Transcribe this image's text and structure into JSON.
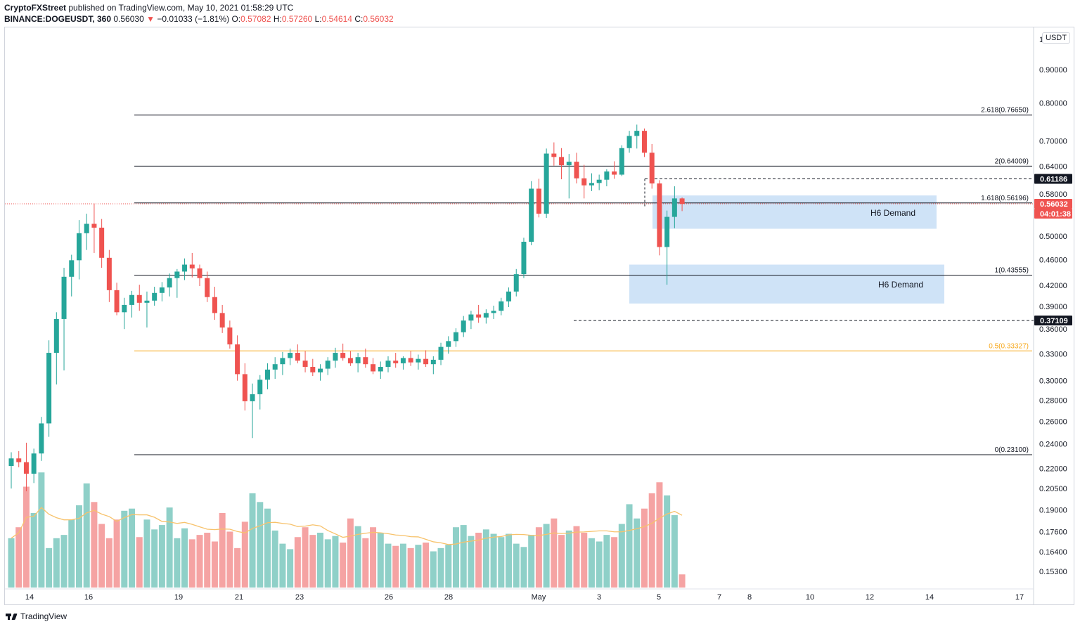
{
  "header": {
    "author": "CryptoFXStreet",
    "published": "published on TradingView.com, May 10, 2021 01:58:29 UTC",
    "symbol": "BINANCE:DOGEUSDT, 360",
    "last": "0.56030",
    "change": "−0.01033 (−1.81%)",
    "o_label": "O:",
    "o": "0.57082",
    "h_label": "H:",
    "h": "0.57260",
    "l_label": "L:",
    "l": "0.54614",
    "c_label": "C:",
    "c": "0.56032"
  },
  "footer": {
    "brand": "TradingView"
  },
  "currency_badge": "USDT",
  "colors": {
    "up": "#26a69a",
    "down": "#ef5350",
    "vol_up": "#8fd0c8",
    "vol_down": "#f5a3a3",
    "zone": "#cfe3f7",
    "fib05": "#f7a81b",
    "ma": "#f7c26b"
  },
  "chart_data": {
    "type": "candlestick",
    "price_axis": {
      "ticks": [
        "1",
        "0.90000",
        "0.80000",
        "0.70000",
        "0.64000",
        "0.58000",
        "0.50000",
        "0.46000",
        "0.42000",
        "0.39000",
        "0.36000",
        "0.33000",
        "0.30000",
        "0.28000",
        "0.26000",
        "0.24000",
        "0.22000",
        "0.20500",
        "0.19000",
        "0.17600",
        "0.16400",
        "0.15300"
      ],
      "scale": "log"
    },
    "time_axis": {
      "ticks": [
        "14",
        "16",
        "19",
        "21",
        "23",
        "26",
        "28",
        "May",
        "3",
        "5",
        "7",
        "8",
        "10",
        "12",
        "14",
        "17"
      ]
    },
    "fib_levels": [
      {
        "label": "2.618(0.76650)",
        "value": 0.7665
      },
      {
        "label": "2(0.64009)",
        "value": 0.64009
      },
      {
        "label": "1.618(0.56196)",
        "value": 0.56196
      },
      {
        "label": "1(0.43555)",
        "value": 0.43555
      },
      {
        "label": "0.5(0.33327)",
        "value": 0.33327
      },
      {
        "label": "0(0.23100)",
        "value": 0.231
      }
    ],
    "price_tags": [
      {
        "label": "0.61186",
        "value": 0.61186,
        "style": "dark"
      },
      {
        "label": "0.56032",
        "value": 0.56032,
        "style": "red"
      },
      {
        "label": "04:01:38",
        "value": 0.535,
        "style": "red"
      },
      {
        "label": "0.37109",
        "value": 0.37109,
        "style": "dark"
      }
    ],
    "zones": [
      {
        "label": "H6 Demand",
        "top": 0.577,
        "bottom": 0.513
      },
      {
        "label": "H6 Demand",
        "top": 0.452,
        "bottom": 0.394
      }
    ],
    "candles": [
      {
        "o": 0.222,
        "h": 0.233,
        "l": 0.205,
        "c": 0.228,
        "v": 0.45
      },
      {
        "o": 0.228,
        "h": 0.234,
        "l": 0.221,
        "c": 0.225,
        "v": 0.55
      },
      {
        "o": 0.225,
        "h": 0.241,
        "l": 0.203,
        "c": 0.216,
        "v": 0.92
      },
      {
        "o": 0.216,
        "h": 0.236,
        "l": 0.209,
        "c": 0.232,
        "v": 0.68
      },
      {
        "o": 0.232,
        "h": 0.264,
        "l": 0.226,
        "c": 0.258,
        "v": 1.05
      },
      {
        "o": 0.258,
        "h": 0.346,
        "l": 0.246,
        "c": 0.331,
        "v": 0.36
      },
      {
        "o": 0.331,
        "h": 0.382,
        "l": 0.296,
        "c": 0.373,
        "v": 0.45
      },
      {
        "o": 0.373,
        "h": 0.447,
        "l": 0.311,
        "c": 0.433,
        "v": 0.48
      },
      {
        "o": 0.433,
        "h": 0.468,
        "l": 0.404,
        "c": 0.459,
        "v": 0.62
      },
      {
        "o": 0.459,
        "h": 0.529,
        "l": 0.429,
        "c": 0.505,
        "v": 0.75
      },
      {
        "o": 0.505,
        "h": 0.541,
        "l": 0.476,
        "c": 0.522,
        "v": 0.95
      },
      {
        "o": 0.522,
        "h": 0.561,
        "l": 0.471,
        "c": 0.515,
        "v": 0.78
      },
      {
        "o": 0.515,
        "h": 0.531,
        "l": 0.447,
        "c": 0.463,
        "v": 0.58
      },
      {
        "o": 0.463,
        "h": 0.476,
        "l": 0.396,
        "c": 0.413,
        "v": 0.45
      },
      {
        "o": 0.413,
        "h": 0.424,
        "l": 0.378,
        "c": 0.382,
        "v": 0.62
      },
      {
        "o": 0.382,
        "h": 0.402,
        "l": 0.36,
        "c": 0.392,
        "v": 0.7
      },
      {
        "o": 0.392,
        "h": 0.412,
        "l": 0.375,
        "c": 0.406,
        "v": 0.72
      },
      {
        "o": 0.406,
        "h": 0.421,
        "l": 0.384,
        "c": 0.395,
        "v": 0.46
      },
      {
        "o": 0.395,
        "h": 0.411,
        "l": 0.362,
        "c": 0.398,
        "v": 0.62
      },
      {
        "o": 0.398,
        "h": 0.418,
        "l": 0.391,
        "c": 0.409,
        "v": 0.53
      },
      {
        "o": 0.409,
        "h": 0.425,
        "l": 0.397,
        "c": 0.417,
        "v": 0.57
      },
      {
        "o": 0.417,
        "h": 0.438,
        "l": 0.404,
        "c": 0.431,
        "v": 0.73
      },
      {
        "o": 0.431,
        "h": 0.445,
        "l": 0.402,
        "c": 0.441,
        "v": 0.45
      },
      {
        "o": 0.441,
        "h": 0.462,
        "l": 0.428,
        "c": 0.452,
        "v": 0.54
      },
      {
        "o": 0.452,
        "h": 0.471,
        "l": 0.432,
        "c": 0.446,
        "v": 0.44
      },
      {
        "o": 0.446,
        "h": 0.452,
        "l": 0.419,
        "c": 0.431,
        "v": 0.48
      },
      {
        "o": 0.431,
        "h": 0.441,
        "l": 0.396,
        "c": 0.403,
        "v": 0.5
      },
      {
        "o": 0.403,
        "h": 0.418,
        "l": 0.372,
        "c": 0.381,
        "v": 0.42
      },
      {
        "o": 0.381,
        "h": 0.392,
        "l": 0.355,
        "c": 0.362,
        "v": 0.68
      },
      {
        "o": 0.362,
        "h": 0.371,
        "l": 0.336,
        "c": 0.341,
        "v": 0.51
      },
      {
        "o": 0.341,
        "h": 0.352,
        "l": 0.3,
        "c": 0.307,
        "v": 0.36
      },
      {
        "o": 0.307,
        "h": 0.319,
        "l": 0.27,
        "c": 0.279,
        "v": 0.6
      },
      {
        "o": 0.279,
        "h": 0.297,
        "l": 0.245,
        "c": 0.286,
        "v": 0.86
      },
      {
        "o": 0.286,
        "h": 0.306,
        "l": 0.271,
        "c": 0.301,
        "v": 0.78
      },
      {
        "o": 0.301,
        "h": 0.319,
        "l": 0.291,
        "c": 0.312,
        "v": 0.72
      },
      {
        "o": 0.312,
        "h": 0.326,
        "l": 0.302,
        "c": 0.318,
        "v": 0.52
      },
      {
        "o": 0.318,
        "h": 0.332,
        "l": 0.306,
        "c": 0.325,
        "v": 0.4
      },
      {
        "o": 0.325,
        "h": 0.336,
        "l": 0.317,
        "c": 0.331,
        "v": 0.35
      },
      {
        "o": 0.331,
        "h": 0.341,
        "l": 0.319,
        "c": 0.322,
        "v": 0.46
      },
      {
        "o": 0.322,
        "h": 0.333,
        "l": 0.309,
        "c": 0.315,
        "v": 0.55
      },
      {
        "o": 0.315,
        "h": 0.324,
        "l": 0.305,
        "c": 0.309,
        "v": 0.48
      },
      {
        "o": 0.309,
        "h": 0.318,
        "l": 0.3,
        "c": 0.313,
        "v": 0.5
      },
      {
        "o": 0.313,
        "h": 0.326,
        "l": 0.306,
        "c": 0.322,
        "v": 0.44
      },
      {
        "o": 0.322,
        "h": 0.337,
        "l": 0.314,
        "c": 0.331,
        "v": 0.47
      },
      {
        "o": 0.331,
        "h": 0.342,
        "l": 0.322,
        "c": 0.325,
        "v": 0.41
      },
      {
        "o": 0.325,
        "h": 0.333,
        "l": 0.316,
        "c": 0.319,
        "v": 0.63
      },
      {
        "o": 0.319,
        "h": 0.331,
        "l": 0.309,
        "c": 0.326,
        "v": 0.56
      },
      {
        "o": 0.326,
        "h": 0.336,
        "l": 0.314,
        "c": 0.318,
        "v": 0.45
      },
      {
        "o": 0.318,
        "h": 0.325,
        "l": 0.307,
        "c": 0.31,
        "v": 0.55
      },
      {
        "o": 0.31,
        "h": 0.321,
        "l": 0.302,
        "c": 0.315,
        "v": 0.5
      },
      {
        "o": 0.315,
        "h": 0.327,
        "l": 0.309,
        "c": 0.322,
        "v": 0.4
      },
      {
        "o": 0.322,
        "h": 0.331,
        "l": 0.314,
        "c": 0.319,
        "v": 0.38
      },
      {
        "o": 0.319,
        "h": 0.327,
        "l": 0.312,
        "c": 0.325,
        "v": 0.4
      },
      {
        "o": 0.325,
        "h": 0.333,
        "l": 0.316,
        "c": 0.32,
        "v": 0.36
      },
      {
        "o": 0.32,
        "h": 0.329,
        "l": 0.312,
        "c": 0.324,
        "v": 0.39
      },
      {
        "o": 0.324,
        "h": 0.334,
        "l": 0.315,
        "c": 0.318,
        "v": 0.41
      },
      {
        "o": 0.318,
        "h": 0.327,
        "l": 0.307,
        "c": 0.323,
        "v": 0.33
      },
      {
        "o": 0.323,
        "h": 0.343,
        "l": 0.317,
        "c": 0.338,
        "v": 0.36
      },
      {
        "o": 0.338,
        "h": 0.351,
        "l": 0.33,
        "c": 0.345,
        "v": 0.39
      },
      {
        "o": 0.345,
        "h": 0.361,
        "l": 0.338,
        "c": 0.356,
        "v": 0.55
      },
      {
        "o": 0.356,
        "h": 0.377,
        "l": 0.35,
        "c": 0.371,
        "v": 0.57
      },
      {
        "o": 0.371,
        "h": 0.384,
        "l": 0.36,
        "c": 0.379,
        "v": 0.47
      },
      {
        "o": 0.379,
        "h": 0.392,
        "l": 0.368,
        "c": 0.375,
        "v": 0.5
      },
      {
        "o": 0.375,
        "h": 0.386,
        "l": 0.367,
        "c": 0.381,
        "v": 0.53
      },
      {
        "o": 0.381,
        "h": 0.391,
        "l": 0.373,
        "c": 0.384,
        "v": 0.49
      },
      {
        "o": 0.384,
        "h": 0.402,
        "l": 0.378,
        "c": 0.397,
        "v": 0.46
      },
      {
        "o": 0.397,
        "h": 0.417,
        "l": 0.389,
        "c": 0.411,
        "v": 0.49
      },
      {
        "o": 0.411,
        "h": 0.445,
        "l": 0.404,
        "c": 0.437,
        "v": 0.4
      },
      {
        "o": 0.437,
        "h": 0.497,
        "l": 0.431,
        "c": 0.49,
        "v": 0.37
      },
      {
        "o": 0.49,
        "h": 0.607,
        "l": 0.484,
        "c": 0.591,
        "v": 0.48
      },
      {
        "o": 0.591,
        "h": 0.612,
        "l": 0.534,
        "c": 0.541,
        "v": 0.55
      },
      {
        "o": 0.541,
        "h": 0.681,
        "l": 0.533,
        "c": 0.669,
        "v": 0.58
      },
      {
        "o": 0.669,
        "h": 0.696,
        "l": 0.641,
        "c": 0.661,
        "v": 0.63
      },
      {
        "o": 0.661,
        "h": 0.682,
        "l": 0.611,
        "c": 0.642,
        "v": 0.48
      },
      {
        "o": 0.642,
        "h": 0.668,
        "l": 0.571,
        "c": 0.65,
        "v": 0.52
      },
      {
        "o": 0.65,
        "h": 0.671,
        "l": 0.602,
        "c": 0.613,
        "v": 0.56
      },
      {
        "o": 0.613,
        "h": 0.643,
        "l": 0.571,
        "c": 0.598,
        "v": 0.5
      },
      {
        "o": 0.598,
        "h": 0.624,
        "l": 0.586,
        "c": 0.603,
        "v": 0.45
      },
      {
        "o": 0.603,
        "h": 0.621,
        "l": 0.588,
        "c": 0.61,
        "v": 0.42
      },
      {
        "o": 0.61,
        "h": 0.633,
        "l": 0.596,
        "c": 0.628,
        "v": 0.48
      },
      {
        "o": 0.628,
        "h": 0.651,
        "l": 0.612,
        "c": 0.621,
        "v": 0.46
      },
      {
        "o": 0.621,
        "h": 0.689,
        "l": 0.618,
        "c": 0.682,
        "v": 0.58
      },
      {
        "o": 0.682,
        "h": 0.725,
        "l": 0.671,
        "c": 0.712,
        "v": 0.76
      },
      {
        "o": 0.712,
        "h": 0.741,
        "l": 0.681,
        "c": 0.725,
        "v": 0.63
      },
      {
        "o": 0.725,
        "h": 0.731,
        "l": 0.661,
        "c": 0.671,
        "v": 0.72
      },
      {
        "o": 0.671,
        "h": 0.692,
        "l": 0.591,
        "c": 0.602,
        "v": 0.86
      },
      {
        "o": 0.602,
        "h": 0.609,
        "l": 0.467,
        "c": 0.481,
        "v": 0.96
      },
      {
        "o": 0.481,
        "h": 0.547,
        "l": 0.421,
        "c": 0.535,
        "v": 0.84
      },
      {
        "o": 0.535,
        "h": 0.596,
        "l": 0.514,
        "c": 0.571,
        "v": 0.66
      },
      {
        "o": 0.571,
        "h": 0.573,
        "l": 0.546,
        "c": 0.56,
        "v": 0.12
      }
    ]
  }
}
